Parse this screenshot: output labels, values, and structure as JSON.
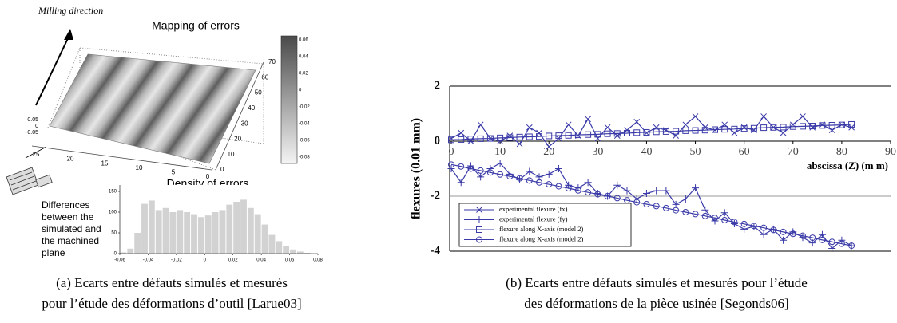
{
  "figure_a": {
    "milling_direction": "Milling direction",
    "surface_title": "Mapping of errors",
    "z_ticks": [
      "0.05",
      "0",
      "-0.05"
    ],
    "x_ticks": [
      "25",
      "20",
      "15",
      "10",
      "5",
      "0"
    ],
    "y_ticks": [
      "0",
      "10",
      "20",
      "30",
      "40",
      "50",
      "60",
      "70"
    ],
    "colorbar_ticks": [
      "0.06",
      "0.04",
      "0.02",
      "0",
      "-0.02",
      "-0.04",
      "-0.06",
      "-0.08"
    ],
    "differences_text": [
      "Differences",
      "between the",
      "simulated and",
      "the machined",
      "plane"
    ],
    "caption": [
      "(a) Ecarts entre défauts simulés et mesurés",
      "pour l’étude des déformations d’outil [Larue03]"
    ]
  },
  "figure_b": {
    "caption": [
      "(b) Ecarts entre défauts simulés et mesurés pour l’étude",
      "des déformations de la pièce usinée [Segonds06]"
    ]
  },
  "chart_data": [
    {
      "type": "histogram",
      "title": "Density of errors",
      "color": "#d2d2d2",
      "bins": [
        -0.06,
        -0.055,
        -0.05,
        -0.045,
        -0.04,
        -0.035,
        -0.03,
        -0.025,
        -0.02,
        -0.015,
        -0.01,
        -0.005,
        0,
        0.005,
        0.01,
        0.015,
        0.02,
        0.025,
        0.03,
        0.035,
        0.04,
        0.045,
        0.05,
        0.055,
        0.06,
        0.065,
        0.07,
        0.075
      ],
      "values": [
        3,
        12,
        50,
        120,
        128,
        105,
        110,
        100,
        105,
        100,
        95,
        88,
        92,
        100,
        105,
        118,
        125,
        130,
        110,
        95,
        70,
        45,
        30,
        18,
        10,
        5,
        2
      ],
      "xlim": [
        -0.06,
        0.08
      ],
      "xticks": [
        -0.06,
        -0.04,
        -0.02,
        0,
        0.02,
        0.04,
        0.06,
        0.08
      ],
      "ylim": [
        0,
        150
      ],
      "yticks": [
        0,
        50,
        100,
        150
      ]
    },
    {
      "type": "line",
      "x_label": "abscissa   (Z)  (m m)",
      "y_label": "flexures  (0.01 mm)",
      "x": [
        0,
        2,
        4,
        6,
        8,
        10,
        12,
        14,
        16,
        18,
        20,
        22,
        24,
        26,
        28,
        30,
        32,
        34,
        36,
        38,
        40,
        42,
        44,
        46,
        48,
        50,
        52,
        54,
        56,
        58,
        60,
        62,
        64,
        66,
        68,
        70,
        72,
        74,
        76,
        78,
        80,
        82
      ],
      "series": [
        {
          "name": "experimental flexure (fx)",
          "color": "#3a3aa8",
          "marker": "cross",
          "values": [
            0.1,
            0.3,
            0.0,
            0.6,
            0.1,
            0.0,
            0.2,
            -0.1,
            0.5,
            0.3,
            -0.2,
            0.1,
            0.6,
            0.2,
            0.8,
            0.1,
            0.5,
            0.2,
            0.4,
            0.7,
            0.3,
            0.5,
            0.4,
            0.2,
            0.6,
            0.9,
            0.5,
            0.4,
            0.6,
            0.3,
            0.5,
            0.4,
            0.9,
            0.5,
            0.3,
            0.6,
            0.9,
            0.5,
            0.6,
            0.4,
            0.6,
            0.5
          ]
        },
        {
          "name": "experimental flexure (fy)",
          "color": "#3a3aa8",
          "marker": "plus",
          "values": [
            -1.0,
            -1.5,
            -0.9,
            -1.3,
            -1.0,
            -0.8,
            -1.2,
            -1.4,
            -1.1,
            -1.3,
            -1.2,
            -1.0,
            -1.6,
            -1.7,
            -1.5,
            -1.9,
            -2.0,
            -1.6,
            -1.8,
            -2.1,
            -1.9,
            -1.8,
            -1.8,
            -2.3,
            -2.1,
            -1.7,
            -2.5,
            -2.9,
            -2.6,
            -3.0,
            -3.2,
            -3.1,
            -3.4,
            -3.2,
            -3.6,
            -3.3,
            -3.5,
            -3.7,
            -3.4,
            -3.9,
            -3.6,
            -3.8
          ]
        },
        {
          "name": "flexure along X-axis (model 2)",
          "color": "#3a3aa8",
          "marker": "square",
          "values": [
            0.05,
            0.06,
            0.08,
            0.09,
            0.1,
            0.12,
            0.13,
            0.15,
            0.16,
            0.17,
            0.19,
            0.2,
            0.21,
            0.23,
            0.24,
            0.25,
            0.27,
            0.28,
            0.29,
            0.31,
            0.32,
            0.34,
            0.35,
            0.36,
            0.38,
            0.39,
            0.4,
            0.42,
            0.43,
            0.44,
            0.46,
            0.47,
            0.49,
            0.5,
            0.51,
            0.53,
            0.54,
            0.55,
            0.57,
            0.58,
            0.59,
            0.61
          ]
        },
        {
          "name": "flexure along X-axis (model 2)",
          "color": "#3a3aa8",
          "marker": "circle",
          "values": [
            -0.85,
            -0.92,
            -1.0,
            -1.07,
            -1.14,
            -1.21,
            -1.28,
            -1.35,
            -1.43,
            -1.5,
            -1.57,
            -1.64,
            -1.71,
            -1.79,
            -1.86,
            -1.93,
            -2.0,
            -2.07,
            -2.15,
            -2.22,
            -2.29,
            -2.36,
            -2.43,
            -2.51,
            -2.58,
            -2.65,
            -2.72,
            -2.79,
            -2.87,
            -2.94,
            -3.01,
            -3.08,
            -3.15,
            -3.23,
            -3.3,
            -3.37,
            -3.44,
            -3.51,
            -3.59,
            -3.66,
            -3.73,
            -3.8
          ]
        }
      ],
      "xlim": [
        0,
        90
      ],
      "xticks": [
        0,
        10,
        20,
        30,
        40,
        50,
        60,
        70,
        80,
        90
      ],
      "ylim": [
        -4,
        2
      ],
      "yticks": [
        -4,
        -2,
        0,
        2
      ],
      "grid": true,
      "legend": "lower left"
    }
  ]
}
